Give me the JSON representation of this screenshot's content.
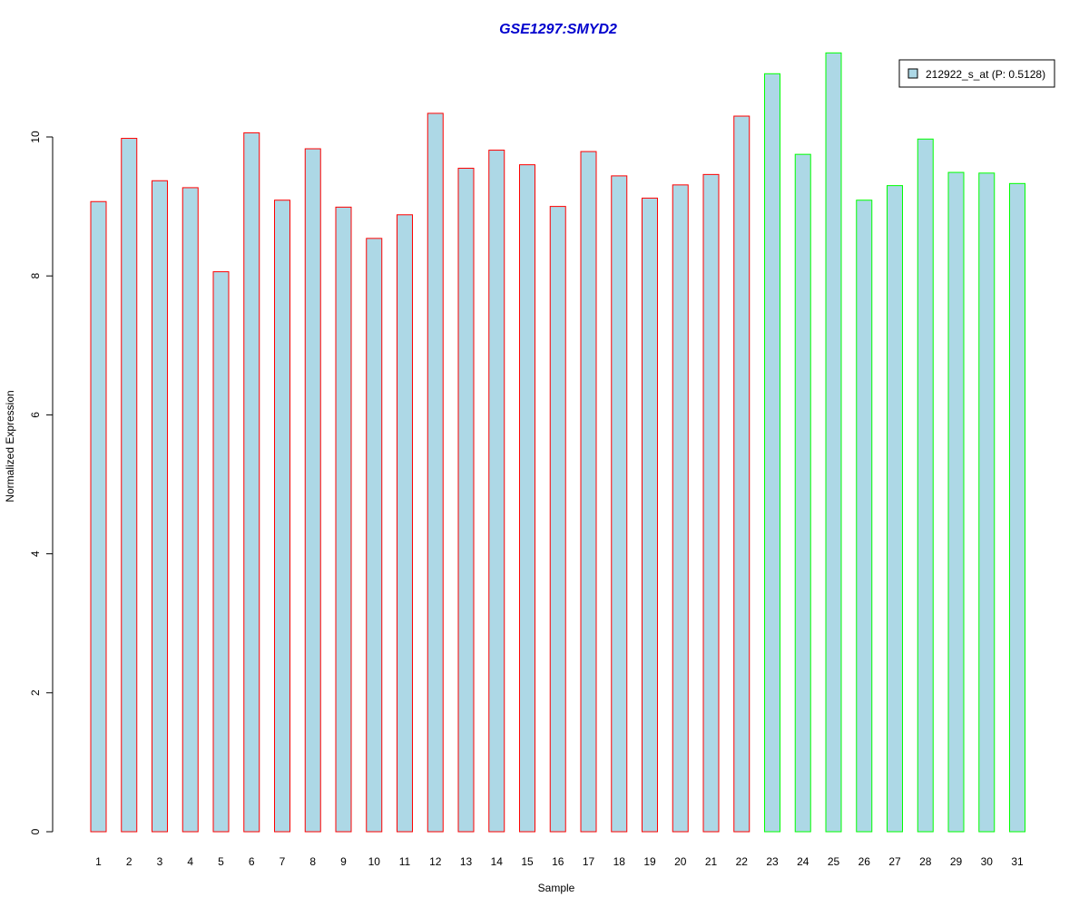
{
  "colors": {
    "bar_fill": "#add8e6",
    "group1_border": "#ff0000",
    "group2_border": "#00ff00",
    "title": "#0000cd",
    "axis": "#000000"
  },
  "chart_data": {
    "type": "bar",
    "title": "GSE1297:SMYD2",
    "xlabel": "Sample",
    "ylabel": "Normalized Expression",
    "ylim": [
      0,
      11.3
    ],
    "yticks": [
      0,
      2,
      4,
      6,
      8,
      10
    ],
    "grid": false,
    "legend_position": "top-right",
    "series": [
      {
        "name": "212922_s_at (P: 0.5128)",
        "values": [
          9.07,
          9.98,
          9.37,
          9.27,
          8.06,
          10.06,
          9.09,
          9.83,
          8.99,
          8.54,
          8.88,
          10.34,
          9.55,
          9.81,
          9.6,
          9.0,
          9.79,
          9.44,
          9.12,
          9.31,
          9.46,
          10.3,
          10.91,
          9.75,
          11.21,
          9.09,
          9.3,
          9.97,
          9.49,
          9.48,
          9.33
        ]
      }
    ],
    "categories": [
      "1",
      "2",
      "3",
      "4",
      "5",
      "6",
      "7",
      "8",
      "9",
      "10",
      "11",
      "12",
      "13",
      "14",
      "15",
      "16",
      "17",
      "18",
      "19",
      "20",
      "21",
      "22",
      "23",
      "24",
      "25",
      "26",
      "27",
      "28",
      "29",
      "30",
      "31"
    ],
    "groups": [
      1,
      1,
      1,
      1,
      1,
      1,
      1,
      1,
      1,
      1,
      1,
      1,
      1,
      1,
      1,
      1,
      1,
      1,
      1,
      1,
      1,
      1,
      2,
      2,
      2,
      2,
      2,
      2,
      2,
      2,
      2
    ]
  }
}
